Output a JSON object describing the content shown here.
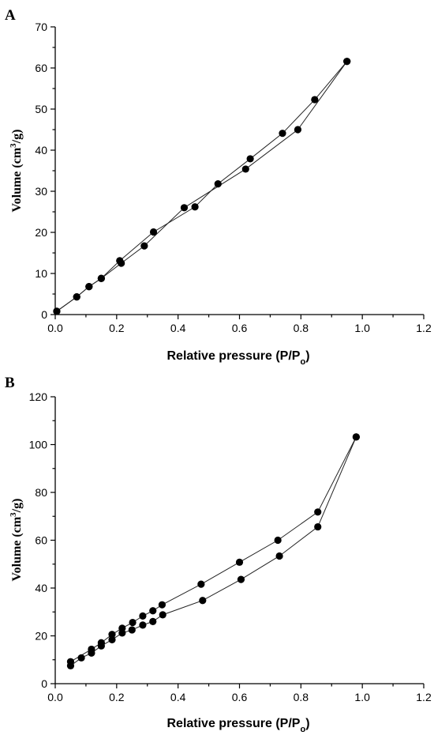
{
  "chart_data": [
    {
      "panel_label": "A",
      "type": "line",
      "xlabel_main": "Relative pressure (P/P",
      "xlabel_sub": "o",
      "xlabel_end": ")",
      "ylabel_main": "Volume (cm",
      "ylabel_sup": "3",
      "ylabel_end": "/g)",
      "xlim": [
        0,
        1.2
      ],
      "ylim": [
        0,
        70
      ],
      "x_ticks": [
        0.0,
        0.2,
        0.4,
        0.6,
        0.8,
        1.0,
        1.2
      ],
      "x_tick_labels": [
        "0.0",
        "0.2",
        "0.4",
        "0.6",
        "0.8",
        "1.0",
        "1.2"
      ],
      "y_ticks": [
        0,
        10,
        20,
        30,
        40,
        50,
        60,
        70
      ],
      "y_tick_labels": [
        "0",
        "10",
        "20",
        "30",
        "40",
        "50",
        "60",
        "70"
      ],
      "grid": false,
      "series": [
        {
          "x": [
            0.005,
            0.07,
            0.11,
            0.15,
            0.215,
            0.29,
            0.42,
            0.62,
            0.79,
            0.95
          ],
          "y": [
            0.8,
            4.3,
            6.8,
            8.8,
            12.5,
            16.7,
            26.0,
            35.4,
            45.0,
            61.6
          ]
        },
        {
          "x": [
            0.95,
            0.845,
            0.74,
            0.635,
            0.53,
            0.455,
            0.32,
            0.21,
            0.15,
            0.11,
            0.07,
            0.005
          ],
          "y": [
            61.6,
            52.3,
            44.1,
            37.9,
            31.8,
            26.2,
            20.1,
            13.1,
            8.8,
            6.8,
            4.3,
            0.8
          ]
        }
      ]
    },
    {
      "panel_label": "B",
      "type": "line",
      "xlabel_main": "Relative pressure (P/P",
      "xlabel_sub": "o",
      "xlabel_end": ")",
      "ylabel_main": "Volume (cm",
      "ylabel_sup": "3",
      "ylabel_end": "/g)",
      "xlim": [
        0,
        1.2
      ],
      "ylim": [
        0,
        120
      ],
      "x_ticks": [
        0.0,
        0.2,
        0.4,
        0.6,
        0.8,
        1.0,
        1.2
      ],
      "x_tick_labels": [
        "0.0",
        "0.2",
        "0.4",
        "0.6",
        "0.8",
        "1.0",
        "1.2"
      ],
      "y_ticks": [
        0,
        20,
        40,
        60,
        80,
        100,
        120
      ],
      "y_tick_labels": [
        "0",
        "20",
        "40",
        "60",
        "80",
        "100",
        "120"
      ],
      "grid": false,
      "series": [
        {
          "x": [
            0.05,
            0.085,
            0.118,
            0.15,
            0.185,
            0.218,
            0.25,
            0.285,
            0.318,
            0.35,
            0.48,
            0.605,
            0.73,
            0.855,
            0.98
          ],
          "y": [
            7.5,
            10.8,
            12.8,
            15.8,
            18.4,
            21.2,
            22.5,
            24.5,
            26.0,
            28.8,
            34.8,
            43.6,
            53.4,
            65.6,
            103.2
          ]
        },
        {
          "x": [
            0.98,
            0.855,
            0.725,
            0.6,
            0.475,
            0.348,
            0.318,
            0.285,
            0.252,
            0.218,
            0.185,
            0.15,
            0.118,
            0.05
          ],
          "y": [
            103.2,
            71.8,
            60.0,
            50.8,
            41.6,
            33.0,
            30.5,
            28.3,
            25.6,
            23.2,
            20.6,
            17.1,
            14.4,
            9.2
          ]
        }
      ]
    }
  ]
}
